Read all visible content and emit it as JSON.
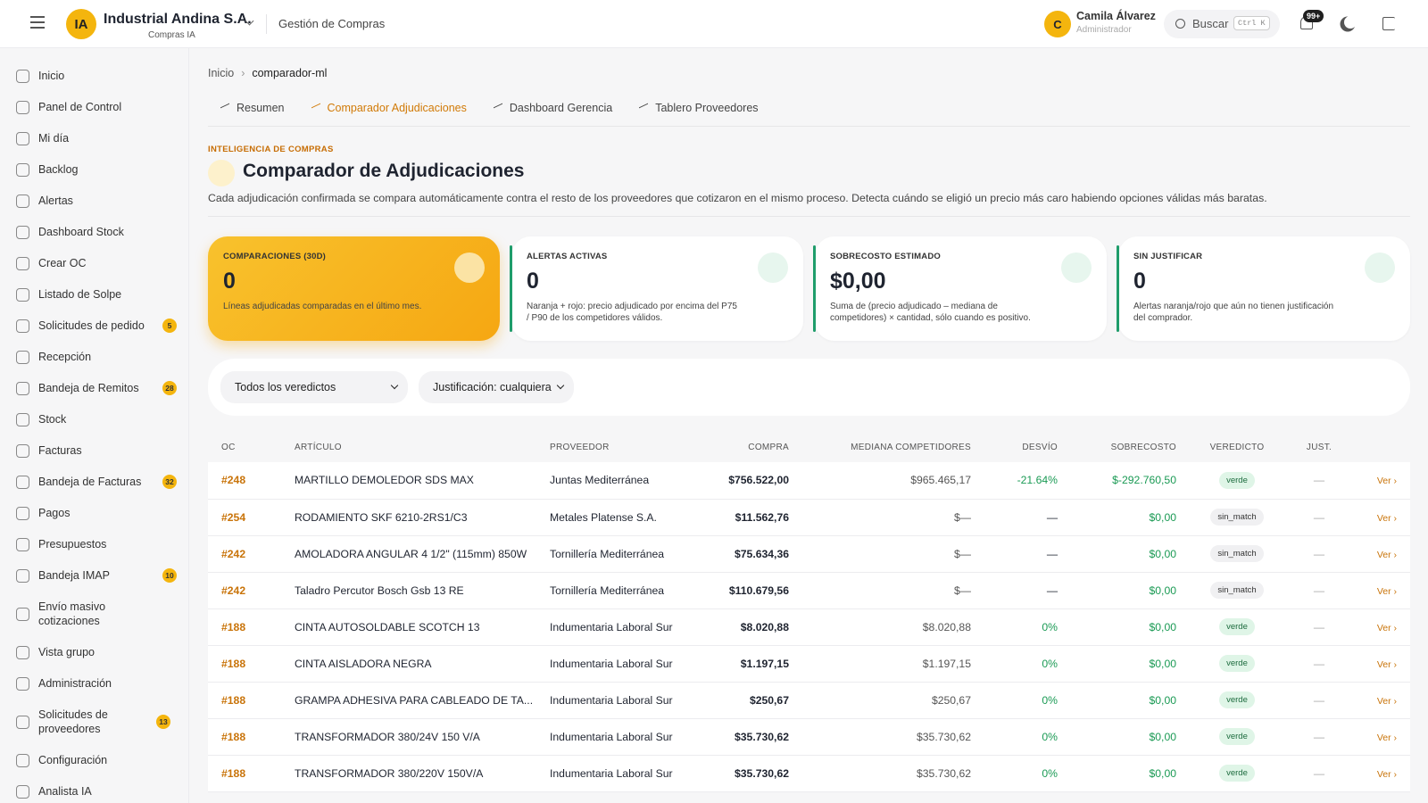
{
  "header": {
    "logo": "IA",
    "company": "Industrial Andina S.A.",
    "company_sub": "Compras IA",
    "section": "Gestión de Compras",
    "user_initial": "C",
    "user_name": "Camila Álvarez",
    "user_role": "Administrador",
    "search": "Buscar",
    "search_shortcut": "Ctrl K",
    "notifications": "99+"
  },
  "sidebar": {
    "items": [
      {
        "label": "Inicio"
      },
      {
        "label": "Panel de Control"
      },
      {
        "label": "Mi día"
      },
      {
        "label": "Backlog"
      },
      {
        "label": "Alertas"
      },
      {
        "label": "Dashboard Stock"
      },
      {
        "label": "Crear OC"
      },
      {
        "label": "Listado de Solpe"
      },
      {
        "label": "Solicitudes de pedido",
        "badge": 5
      },
      {
        "label": "Recepción"
      },
      {
        "label": "Bandeja de Remitos",
        "badge": 28
      },
      {
        "label": "Stock"
      },
      {
        "label": "Facturas"
      },
      {
        "label": "Bandeja de Facturas",
        "badge": 32
      },
      {
        "label": "Pagos"
      },
      {
        "label": "Presupuestos"
      },
      {
        "label": "Bandeja IMAP",
        "badge": 10
      },
      {
        "label": "Envío masivo cotizaciones"
      },
      {
        "label": "Vista grupo"
      },
      {
        "label": "Administración"
      },
      {
        "label": "Solicitudes de proveedores",
        "badge": 13
      },
      {
        "label": "Configuración"
      },
      {
        "label": "Analista IA"
      }
    ]
  },
  "breadcrumb": [
    "Inicio",
    "comparador-ml"
  ],
  "tabs": {
    "items": [
      "Resumen",
      "Comparador Adjudicaciones",
      "Dashboard Gerencia",
      "Tablero Proveedores"
    ],
    "active": 1
  },
  "page": {
    "eyebrow": "INTELIGENCIA DE COMPRAS",
    "title": "Comparador de Adjudicaciones",
    "description": "Cada adjudicación confirmada se compara automáticamente contra el resto de los proveedores que cotizaron en el mismo proceso. Detecta cuándo se eligió un precio más caro habiendo opciones válidas más baratas."
  },
  "kpis": [
    {
      "label": "COMPARACIONES (30D)",
      "value": "0",
      "note": "Líneas adjudicadas comparadas en el último mes."
    },
    {
      "label": "ALERTAS ACTIVAS",
      "value": "0",
      "note": "Naranja + rojo: precio adjudicado por encima del P75 / P90 de los competidores válidos."
    },
    {
      "label": "SOBRECOSTO ESTIMADO",
      "value": "$0,00",
      "note": "Suma de (precio adjudicado – mediana de competidores) × cantidad, sólo cuando es positivo."
    },
    {
      "label": "SIN JUSTIFICAR",
      "value": "0",
      "note": "Alertas naranja/rojo que aún no tienen justificación del comprador."
    }
  ],
  "filters": [
    "Todos los veredictos",
    "Justificación: cualquiera"
  ],
  "table": {
    "columns": [
      "OC",
      "ARTÍCULO",
      "PROVEEDOR",
      "COMPRA",
      "MEDIANA COMPETIDORES",
      "DESVÍO",
      "SOBRECOSTO",
      "VEREDICTO",
      "JUST."
    ],
    "rows": [
      [
        "#248",
        "MARTILLO DEMOLEDOR SDS MAX",
        "Juntas Mediterránea",
        "$756.522,00",
        "$965.465,17",
        "-21.64%",
        "$-292.760,50",
        "verde",
        "—",
        "Ver ›"
      ],
      [
        "#254",
        "RODAMIENTO SKF 6210-2RS1/C3",
        "Metales Platense S.A.",
        "$11.562,76",
        "$—",
        "—",
        "$0,00",
        "sin_match",
        "—",
        "Ver ›"
      ],
      [
        "#242",
        "AMOLADORA ANGULAR 4 1/2\" (115mm) 850W",
        "Tornillería Mediterránea",
        "$75.634,36",
        "$—",
        "—",
        "$0,00",
        "sin_match",
        "—",
        "Ver ›"
      ],
      [
        "#242",
        "Taladro Percutor Bosch Gsb 13 RE",
        "Tornillería Mediterránea",
        "$110.679,56",
        "$—",
        "—",
        "$0,00",
        "sin_match",
        "—",
        "Ver ›"
      ],
      [
        "#188",
        "CINTA AUTOSOLDABLE SCOTCH 13",
        "Indumentaria Laboral Sur",
        "$8.020,88",
        "$8.020,88",
        "0%",
        "$0,00",
        "verde",
        "—",
        "Ver ›"
      ],
      [
        "#188",
        "CINTA AISLADORA NEGRA",
        "Indumentaria Laboral Sur",
        "$1.197,15",
        "$1.197,15",
        "0%",
        "$0,00",
        "verde",
        "—",
        "Ver ›"
      ],
      [
        "#188",
        "GRAMPA ADHESIVA PARA CABLEADO DE TA...",
        "Indumentaria Laboral Sur",
        "$250,67",
        "$250,67",
        "0%",
        "$0,00",
        "verde",
        "—",
        "Ver ›"
      ],
      [
        "#188",
        "TRANSFORMADOR 380/24V 150 V/A",
        "Indumentaria Laboral Sur",
        "$35.730,62",
        "$35.730,62",
        "0%",
        "$0,00",
        "verde",
        "—",
        "Ver ›"
      ],
      [
        "#188",
        "TRANSFORMADOR 380/220V 150V/A",
        "Indumentaria Laboral Sur",
        "$35.730,62",
        "$35.730,62",
        "0%",
        "$0,00",
        "verde",
        "—",
        "Ver ›"
      ]
    ]
  }
}
